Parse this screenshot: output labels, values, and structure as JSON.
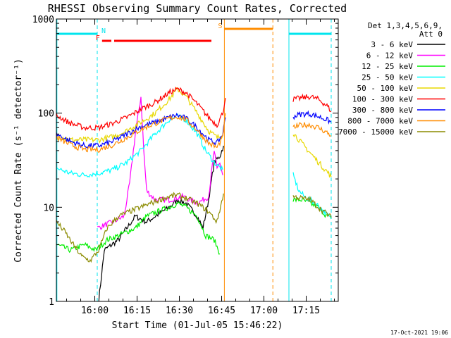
{
  "chart_data": {
    "type": "line",
    "title": "RHESSI Observing Summary Count Rates, Corrected",
    "xlabel": "Start Time (01-Jul-05 15:46:22)",
    "ylabel": "Corrected Count Rate (s⁻¹ detector⁻¹)",
    "x_unit": "minutes after 15:46:22",
    "xlim": [
      0,
      100
    ],
    "ylim": [
      1,
      1000
    ],
    "yscale": "log",
    "xticks": [
      {
        "label": "16:00",
        "x": 13.63
      },
      {
        "label": "16:15",
        "x": 28.63
      },
      {
        "label": "16:30",
        "x": 43.63
      },
      {
        "label": "16:45",
        "x": 58.63
      },
      {
        "label": "17:00",
        "x": 73.63
      },
      {
        "label": "17:15",
        "x": 88.63
      }
    ],
    "yticks": [
      {
        "label": "1",
        "v": 1
      },
      {
        "label": "10",
        "v": 10
      },
      {
        "label": "100",
        "v": 100
      },
      {
        "label": "1000",
        "v": 1000
      }
    ],
    "legend": {
      "placement": "right",
      "header": [
        "Det 1,3,4,5,6,9,",
        "Att 0"
      ],
      "entries": [
        {
          "label": "3 - 6 keV",
          "color": "#000000"
        },
        {
          "label": "6 - 12 keV",
          "color": "#ff00ff"
        },
        {
          "label": "12 - 25 keV",
          "color": "#00ee00"
        },
        {
          "label": "25 - 50 keV",
          "color": "#00ffff"
        },
        {
          "label": "50 - 100 keV",
          "color": "#e8d800"
        },
        {
          "label": "100 - 300 keV",
          "color": "#ff0000"
        },
        {
          "label": "300 - 800 keV",
          "color": "#0000ff"
        },
        {
          "label": "800 - 7000 keV",
          "color": "#ff8c00"
        },
        {
          "label": "7000 - 15000 keV",
          "color": "#8b8b00"
        }
      ]
    },
    "flags": [
      {
        "label": "N",
        "color": "#00e5ee",
        "segments": [
          [
            0,
            14.5
          ],
          [
            82.5,
            97.5
          ]
        ]
      },
      {
        "label": "F",
        "color": "#ff0000",
        "segments": [
          [
            16.2,
            19.5
          ],
          [
            20.5,
            55.0
          ]
        ]
      },
      {
        "label": "S",
        "color": "#ff8c00",
        "segments": [
          [
            59.6,
            76.8
          ]
        ]
      }
    ],
    "markers": [
      {
        "x": 0.2,
        "color": "#00e5ee",
        "style": "solid"
      },
      {
        "x": 14.5,
        "color": "#00e5ee",
        "style": "dashed"
      },
      {
        "x": 59.6,
        "color": "#ff8c00",
        "style": "solid"
      },
      {
        "x": 76.8,
        "color": "#ff8c00",
        "style": "dashed"
      },
      {
        "x": 82.5,
        "color": "#00e5ee",
        "style": "solid"
      },
      {
        "x": 97.5,
        "color": "#00e5ee",
        "style": "dashed"
      }
    ],
    "series": [
      {
        "name": "3 - 6 keV",
        "color": "#000000",
        "segments": [
          [
            [
              15,
              1.0
            ],
            [
              17,
              3.5
            ],
            [
              22,
              4.5
            ],
            [
              25,
              6.0
            ],
            [
              28,
              8.0
            ],
            [
              32,
              7.0
            ],
            [
              35,
              8.0
            ],
            [
              40,
              10.0
            ],
            [
              43,
              12.0
            ],
            [
              46,
              11.0
            ],
            [
              50,
              8.0
            ],
            [
              52,
              6.0
            ],
            [
              54,
              12.0
            ],
            [
              56,
              30.0
            ],
            [
              58,
              35.0
            ],
            [
              59.3,
              45.0
            ]
          ]
        ]
      },
      {
        "name": "6 - 12 keV",
        "color": "#ff00ff",
        "segments": [
          [
            [
              14.5,
              6.0
            ],
            [
              20,
              7.0
            ],
            [
              24,
              8.0
            ],
            [
              26,
              18.0
            ],
            [
              28,
              60.0
            ],
            [
              30,
              150.0
            ],
            [
              31,
              40.0
            ],
            [
              32,
              15.0
            ],
            [
              35,
              12.0
            ],
            [
              40,
              12.0
            ],
            [
              45,
              13.0
            ],
            [
              50,
              11.0
            ],
            [
              54,
              13.0
            ],
            [
              56,
              40.0
            ],
            [
              57,
              25.0
            ],
            [
              58,
              30.0
            ],
            [
              59,
              22.0
            ]
          ]
        ]
      },
      {
        "name": "12 - 25 keV",
        "color": "#00ee00",
        "segments": [
          [
            [
              0,
              4.0
            ],
            [
              5,
              3.5
            ],
            [
              10,
              4.0
            ],
            [
              14,
              3.5
            ],
            [
              18,
              4.5
            ],
            [
              22,
              5.0
            ],
            [
              25,
              5.5
            ],
            [
              28,
              6.0
            ],
            [
              32,
              8.0
            ],
            [
              36,
              9.0
            ],
            [
              40,
              10.0
            ],
            [
              43,
              11.0
            ],
            [
              46,
              10.0
            ],
            [
              50,
              8.0
            ],
            [
              53,
              5.0
            ],
            [
              56,
              4.5
            ],
            [
              58,
              3.2
            ]
          ],
          [
            [
              84,
              12.0
            ],
            [
              87,
              12.0
            ],
            [
              90,
              11.0
            ],
            [
              93,
              10.0
            ],
            [
              96,
              8.0
            ],
            [
              97.5,
              7.5
            ]
          ]
        ]
      },
      {
        "name": "25 - 50 keV",
        "color": "#00ffff",
        "segments": [
          [
            [
              0,
              26.0
            ],
            [
              5,
              23.0
            ],
            [
              10,
              22.0
            ],
            [
              15,
              23.0
            ],
            [
              20,
              25.0
            ],
            [
              25,
              30.0
            ],
            [
              30,
              40.0
            ],
            [
              35,
              60.0
            ],
            [
              40,
              85.0
            ],
            [
              43,
              92.0
            ],
            [
              46,
              85.0
            ],
            [
              50,
              60.0
            ],
            [
              53,
              40.0
            ],
            [
              56,
              30.0
            ],
            [
              59,
              25.0
            ]
          ],
          [
            [
              84,
              22.0
            ],
            [
              86,
              15.0
            ],
            [
              88,
              13.0
            ],
            [
              92,
              11.0
            ],
            [
              95,
              9.0
            ],
            [
              97.5,
              7.5
            ]
          ]
        ]
      },
      {
        "name": "50 - 100 keV",
        "color": "#e8d800",
        "segments": [
          [
            [
              0,
              58.0
            ],
            [
              5,
              52.0
            ],
            [
              10,
              52.0
            ],
            [
              15,
              52.0
            ],
            [
              20,
              56.0
            ],
            [
              25,
              65.0
            ],
            [
              30,
              80.0
            ],
            [
              35,
              100.0
            ],
            [
              40,
              140.0
            ],
            [
              43,
              180.0
            ],
            [
              46,
              150.0
            ],
            [
              50,
              100.0
            ],
            [
              54,
              65.0
            ],
            [
              57,
              55.0
            ],
            [
              59,
              58.0
            ]
          ],
          [
            [
              84,
              62.0
            ],
            [
              87,
              48.0
            ],
            [
              90,
              38.0
            ],
            [
              93,
              30.0
            ],
            [
              96,
              24.0
            ],
            [
              97.5,
              21.0
            ]
          ]
        ]
      },
      {
        "name": "100 - 300 keV",
        "color": "#ff0000",
        "segments": [
          [
            [
              0,
              95.0
            ],
            [
              5,
              78.0
            ],
            [
              10,
              70.0
            ],
            [
              15,
              70.0
            ],
            [
              20,
              78.0
            ],
            [
              25,
              90.0
            ],
            [
              30,
              110.0
            ],
            [
              35,
              130.0
            ],
            [
              40,
              165.0
            ],
            [
              43,
              180.0
            ],
            [
              46,
              165.0
            ],
            [
              50,
              125.0
            ],
            [
              54,
              90.0
            ],
            [
              57,
              75.0
            ],
            [
              59,
              100.0
            ],
            [
              60,
              145.0
            ]
          ],
          [
            [
              84,
              140.0
            ],
            [
              87,
              145.0
            ],
            [
              90,
              150.0
            ],
            [
              93,
              140.0
            ],
            [
              96,
              120.0
            ],
            [
              97.5,
              105.0
            ]
          ]
        ]
      },
      {
        "name": "300 - 800 keV",
        "color": "#0000ff",
        "segments": [
          [
            [
              0,
              60.0
            ],
            [
              5,
              50.0
            ],
            [
              10,
              45.0
            ],
            [
              15,
              45.0
            ],
            [
              20,
              50.0
            ],
            [
              25,
              60.0
            ],
            [
              30,
              72.0
            ],
            [
              35,
              80.0
            ],
            [
              40,
              90.0
            ],
            [
              43,
              95.0
            ],
            [
              46,
              88.0
            ],
            [
              50,
              70.0
            ],
            [
              54,
              52.0
            ],
            [
              57,
              48.0
            ],
            [
              59,
              60.0
            ],
            [
              60,
              90.0
            ]
          ],
          [
            [
              84,
              92.0
            ],
            [
              87,
              98.0
            ],
            [
              90,
              98.0
            ],
            [
              93,
              92.0
            ],
            [
              96,
              85.0
            ],
            [
              97.5,
              80.0
            ]
          ]
        ]
      },
      {
        "name": "800 - 7000 keV",
        "color": "#ff8c00",
        "segments": [
          [
            [
              0,
              55.0
            ],
            [
              5,
              46.0
            ],
            [
              10,
              41.0
            ],
            [
              15,
              41.0
            ],
            [
              20,
              46.0
            ],
            [
              25,
              55.0
            ],
            [
              30,
              67.0
            ],
            [
              35,
              78.0
            ],
            [
              40,
              88.0
            ],
            [
              43,
              92.0
            ],
            [
              46,
              85.0
            ],
            [
              50,
              66.0
            ],
            [
              54,
              48.0
            ],
            [
              57,
              43.0
            ],
            [
              59,
              55.0
            ],
            [
              60,
              100.0
            ]
          ],
          [
            [
              84,
              70.0
            ],
            [
              87,
              75.0
            ],
            [
              90,
              75.0
            ],
            [
              93,
              70.0
            ],
            [
              96,
              62.0
            ],
            [
              97.5,
              58.0
            ]
          ]
        ]
      },
      {
        "name": "7000 - 15000 keV",
        "color": "#8b8b00",
        "segments": [
          [
            [
              0,
              7.0
            ],
            [
              3,
              5.5
            ],
            [
              6,
              4.0
            ],
            [
              9,
              3.0
            ],
            [
              12,
              2.7
            ],
            [
              15,
              3.5
            ],
            [
              18,
              6.0
            ],
            [
              22,
              8.0
            ],
            [
              26,
              9.0
            ],
            [
              30,
              10.0
            ],
            [
              35,
              11.5
            ],
            [
              40,
              13.0
            ],
            [
              43,
              13.5
            ],
            [
              46,
              12.5
            ],
            [
              50,
              11.0
            ],
            [
              54,
              9.0
            ],
            [
              57,
              7.0
            ],
            [
              59.3,
              14.0
            ]
          ],
          [
            [
              84,
              13.0
            ],
            [
              87,
              12.5
            ],
            [
              90,
              12.0
            ],
            [
              93,
              10.0
            ],
            [
              96,
              8.5
            ],
            [
              97.5,
              7.8
            ]
          ]
        ]
      }
    ]
  },
  "timestamp": "17-Oct-2021 19:06"
}
